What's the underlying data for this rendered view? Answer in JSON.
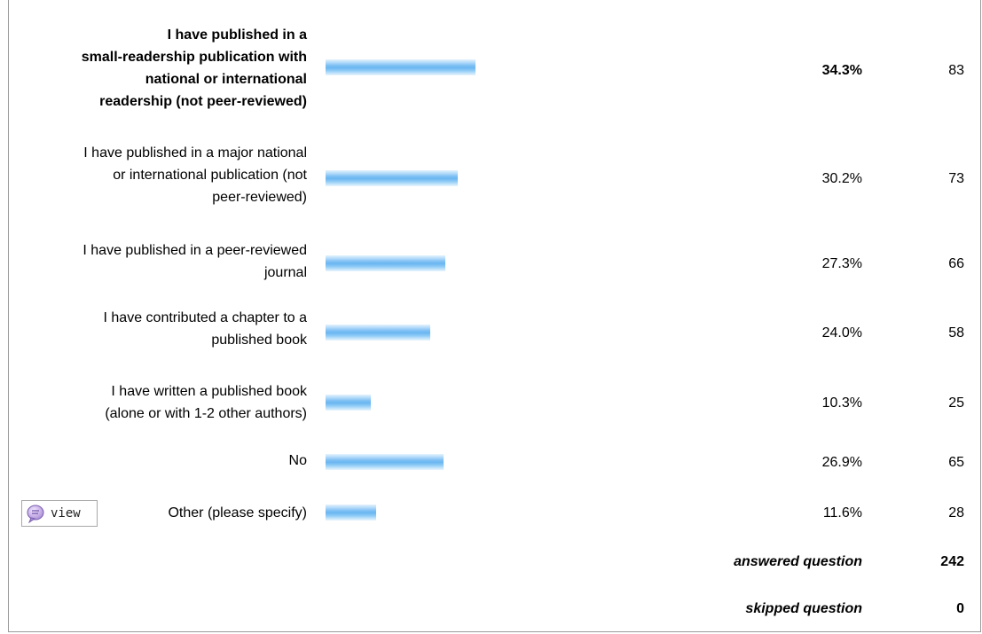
{
  "chart_data": {
    "type": "bar",
    "orientation": "horizontal",
    "categories": [
      "I have published in a small-readership publication with national or international readership (not peer-reviewed)",
      "I have published in a major national or international publication (not peer-reviewed)",
      "I have published in a peer-reviewed journal",
      "I have contributed a chapter to a published book",
      "I have written a published book (alone or with 1-2 other authors)",
      "No",
      "Other (please specify)"
    ],
    "percent_labels": [
      "34.3%",
      "30.2%",
      "27.3%",
      "24.0%",
      "10.3%",
      "26.9%",
      "11.6%"
    ],
    "values": [
      34.3,
      30.2,
      27.3,
      24.0,
      10.3,
      26.9,
      11.6
    ],
    "counts": [
      83,
      73,
      66,
      58,
      25,
      65,
      28
    ],
    "colors": {
      "bar": "#6ab6f1"
    }
  },
  "summary": {
    "answered_label": "answered question",
    "answered_value": "242",
    "skipped_label": "skipped question",
    "skipped_value": "0"
  },
  "view_button": {
    "label": "view",
    "icon": "speech-bubble-icon"
  }
}
